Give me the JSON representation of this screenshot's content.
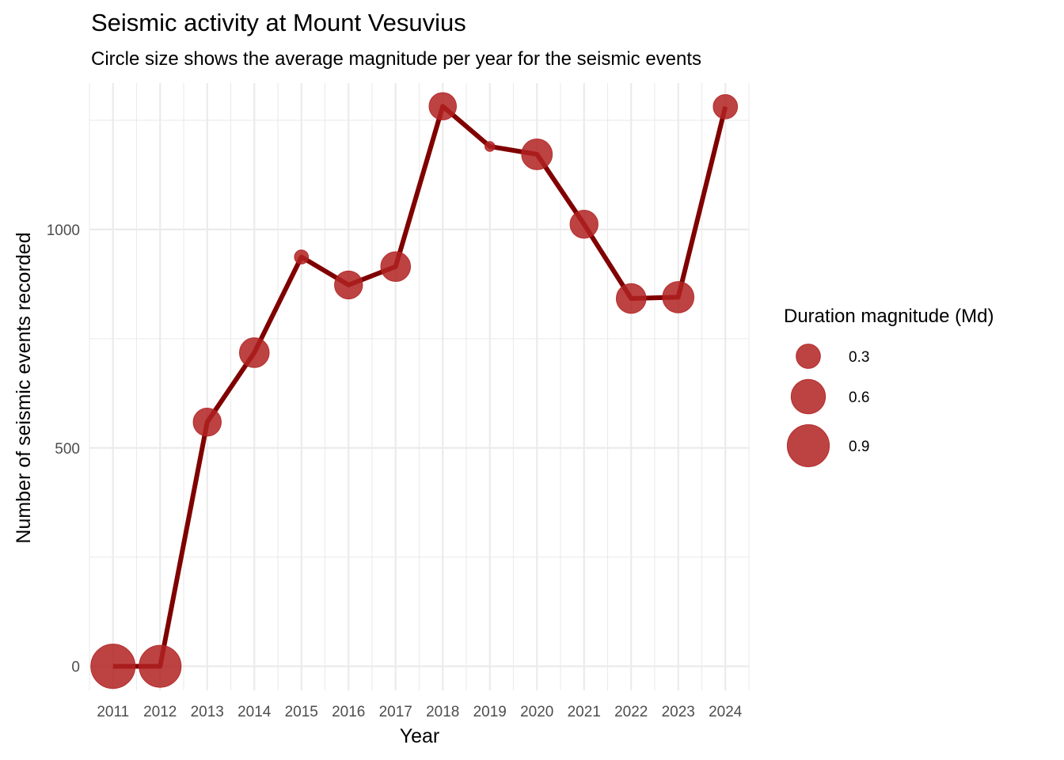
{
  "chart_data": {
    "type": "line",
    "title": "Seismic activity at Mount Vesuvius",
    "subtitle": "Circle size shows the average magnitude per year for the seismic events",
    "xlabel": "Year",
    "ylabel": "Number of seismic events recorded",
    "x": [
      2011,
      2012,
      2013,
      2014,
      2015,
      2016,
      2017,
      2018,
      2019,
      2020,
      2021,
      2022,
      2023,
      2024
    ],
    "x_tick_labels": [
      "2011",
      "2012",
      "2013",
      "2014",
      "2015",
      "2016",
      "2017",
      "2018",
      "2019",
      "2020",
      "2021",
      "2022",
      "2023",
      "2024"
    ],
    "y": [
      0,
      0,
      559,
      718,
      937,
      873,
      915,
      1282,
      1190,
      1172,
      1012,
      842,
      845,
      1281
    ],
    "size_values": [
      1.0,
      0.9,
      0.4,
      0.45,
      0.1,
      0.4,
      0.45,
      0.38,
      0.05,
      0.48,
      0.4,
      0.45,
      0.5,
      0.3
    ],
    "y_ticks": [
      0,
      500,
      1000
    ],
    "y_tick_labels": [
      "0",
      "500",
      "1000"
    ],
    "ylim": [
      -55,
      1335
    ],
    "xlim": [
      2010.5,
      2024.5
    ],
    "grid": true,
    "line_color": "#800000",
    "point_color": "#b22222",
    "legend": {
      "title": "Duration magnitude (Md)",
      "position": "right",
      "entries": [
        {
          "label": "0.3",
          "value": 0.3
        },
        {
          "label": "0.6",
          "value": 0.6
        },
        {
          "label": "0.9",
          "value": 0.9
        }
      ]
    }
  }
}
